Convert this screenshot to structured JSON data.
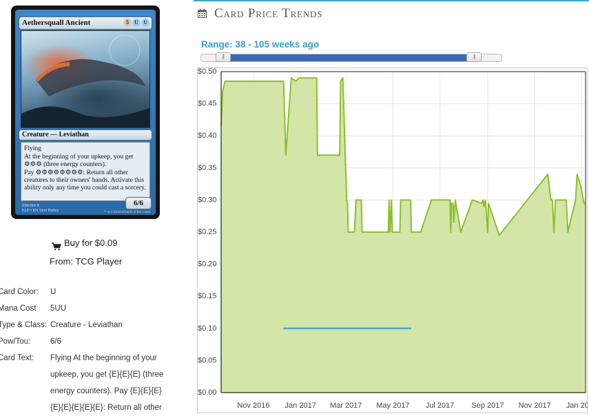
{
  "card": {
    "name": "Aethersquall Ancient",
    "mana_symbols": [
      "5",
      "U",
      "U"
    ],
    "type_line": "Creature — Leviathan",
    "rules_text": [
      "Flying",
      "At the beginning of your upkeep, you get ⚙⚙⚙ (three energy counters).",
      "Pay ⚙⚙⚙⚙⚙⚙⚙⚙: Return all other creatures to their owners' hands. Activate this ability only any time you could cast a sorcery."
    ],
    "power_toughness": "6/6",
    "collector_info": "039/264 R",
    "set_info": "KLD • EN",
    "artist": "Sam Burley",
    "copyright": "™ & © 2016 Wizards of the Coast"
  },
  "buy": {
    "label": "Buy for $0.09",
    "from": "From: TCG Player"
  },
  "details": [
    {
      "label": "Card Color:",
      "value": "U"
    },
    {
      "label": "Mana Cost",
      "value": "5UU"
    },
    {
      "label": "Type & Class:",
      "value": "Creature - Leviathan"
    },
    {
      "label": "Pow/Tou:",
      "value": "6/6"
    },
    {
      "label": "Card Text:",
      "value": "Flying At the beginning of your upkeep, you get {E}{E}{E} (three energy counters). Pay {E}{E}{E} {E}{E}{E}{E}{E}: Return all other"
    }
  ],
  "section_title": "Card Price Trends",
  "range": {
    "label": "Range: 38 - 105 weeks ago",
    "min": 0,
    "max": 110,
    "start": 8,
    "end": 100
  },
  "colors": {
    "fill": "#d3e6a7",
    "line": "#8cbe2c",
    "buy_line": "#4aa6c9",
    "accent": "#3a9dc6",
    "slider": "#3d68b6"
  },
  "icons": {
    "cart": "shopping-cart-icon",
    "calendar": "calendar-icon"
  },
  "chart_data": {
    "type": "area",
    "xlim": [
      "2016-09-20",
      "2018-01-06"
    ],
    "ylim": [
      0,
      0.5
    ],
    "y_ticks": [
      {
        "v": 0.0,
        "label": "$0.00"
      },
      {
        "v": 0.05,
        "label": "$0.05"
      },
      {
        "v": 0.1,
        "label": "$0.10"
      },
      {
        "v": 0.15,
        "label": "$0.15"
      },
      {
        "v": 0.2,
        "label": "$0.20"
      },
      {
        "v": 0.25,
        "label": "$0.25"
      },
      {
        "v": 0.3,
        "label": "$0.30"
      },
      {
        "v": 0.35,
        "label": "$0.35"
      },
      {
        "v": 0.4,
        "label": "$0.40"
      },
      {
        "v": 0.45,
        "label": "$0.45"
      },
      {
        "v": 0.5,
        "label": "$0.50"
      }
    ],
    "x_ticks": [
      {
        "date": "2016-11-01",
        "label": "Nov 2016"
      },
      {
        "date": "2017-01-01",
        "label": "Jan 2017"
      },
      {
        "date": "2017-03-01",
        "label": "Mar 2017"
      },
      {
        "date": "2017-05-01",
        "label": "May 2017"
      },
      {
        "date": "2017-07-01",
        "label": "Jul 2017"
      },
      {
        "date": "2017-09-01",
        "label": "Sep 2017"
      },
      {
        "date": "2017-11-01",
        "label": "Nov 2017"
      },
      {
        "date": "2018-01-01",
        "label": "Jan 2018"
      }
    ],
    "series": [
      {
        "points": [
          [
            "2016-09-20",
            0.415
          ],
          [
            "2016-09-22",
            0.47
          ],
          [
            "2016-09-25",
            0.485
          ],
          [
            "2016-12-10",
            0.485
          ],
          [
            "2016-12-13",
            0.37
          ],
          [
            "2016-12-20",
            0.49
          ],
          [
            "2016-12-26",
            0.485
          ],
          [
            "2016-12-30",
            0.49
          ],
          [
            "2017-01-22",
            0.49
          ],
          [
            "2017-01-23",
            0.37
          ],
          [
            "2017-02-21",
            0.37
          ],
          [
            "2017-02-22",
            0.485
          ],
          [
            "2017-02-25",
            0.49
          ],
          [
            "2017-02-28",
            0.37
          ],
          [
            "2017-03-02",
            0.3
          ],
          [
            "2017-03-03",
            0.295
          ],
          [
            "2017-03-04",
            0.25
          ],
          [
            "2017-03-12",
            0.25
          ],
          [
            "2017-03-14",
            0.3
          ],
          [
            "2017-03-21",
            0.3
          ],
          [
            "2017-03-22",
            0.25
          ],
          [
            "2017-04-25",
            0.25
          ],
          [
            "2017-04-26",
            0.3
          ],
          [
            "2017-04-27",
            0.25
          ],
          [
            "2017-04-29",
            0.3
          ],
          [
            "2017-04-30",
            0.25
          ],
          [
            "2017-05-10",
            0.25
          ],
          [
            "2017-05-11",
            0.3
          ],
          [
            "2017-05-24",
            0.3
          ],
          [
            "2017-05-25",
            0.25
          ],
          [
            "2017-06-06",
            0.25
          ],
          [
            "2017-06-20",
            0.3
          ],
          [
            "2017-07-14",
            0.3
          ],
          [
            "2017-07-15",
            0.25
          ],
          [
            "2017-07-16",
            0.295
          ],
          [
            "2017-07-18",
            0.295
          ],
          [
            "2017-07-19",
            0.265
          ],
          [
            "2017-07-21",
            0.3
          ],
          [
            "2017-07-28",
            0.25
          ],
          [
            "2017-08-12",
            0.3
          ],
          [
            "2017-08-24",
            0.295
          ],
          [
            "2017-08-26",
            0.3
          ],
          [
            "2017-08-27",
            0.29
          ],
          [
            "2017-08-29",
            0.3
          ],
          [
            "2017-09-01",
            0.25
          ],
          [
            "2017-09-02",
            0.295
          ],
          [
            "2017-09-16",
            0.245
          ],
          [
            "2017-11-18",
            0.34
          ],
          [
            "2017-11-22",
            0.3
          ],
          [
            "2017-11-24",
            0.3
          ],
          [
            "2017-11-26",
            0.25
          ],
          [
            "2017-11-28",
            0.3
          ],
          [
            "2017-12-12",
            0.3
          ],
          [
            "2017-12-14",
            0.25
          ],
          [
            "2017-12-24",
            0.3
          ],
          [
            "2017-12-26",
            0.34
          ],
          [
            "2017-12-31",
            0.32
          ],
          [
            "2018-01-04",
            0.295
          ],
          [
            "2018-01-06",
            0.295
          ]
        ]
      },
      {
        "points": [
          [
            "2016-12-10",
            0.1
          ],
          [
            "2017-05-25",
            0.1
          ]
        ]
      }
    ]
  }
}
